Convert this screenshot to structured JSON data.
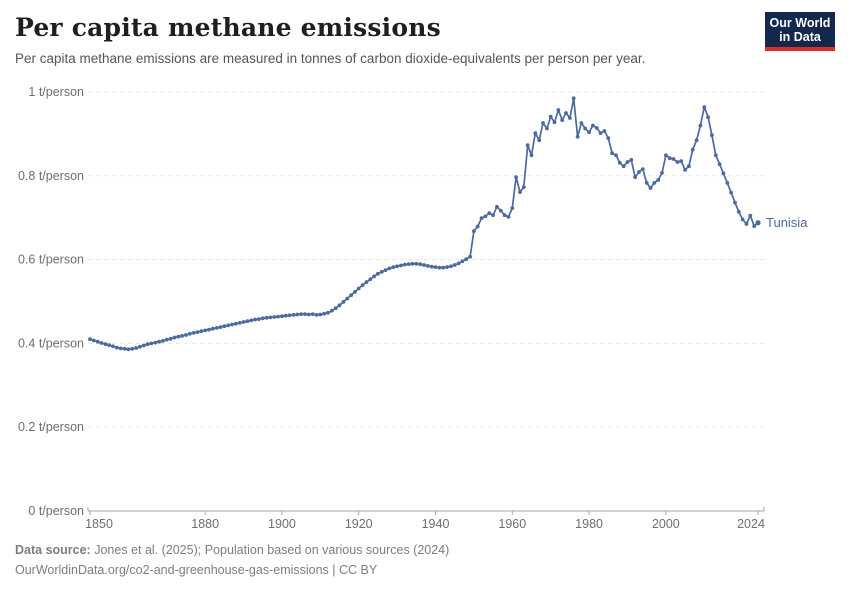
{
  "header": {
    "title": "Per capita methane emissions",
    "subtitle": "Per capita methane emissions are measured in tonnes of carbon dioxide-equivalents per person per year.",
    "logo_line1": "Our World",
    "logo_line2": "in Data"
  },
  "footer": {
    "source_label": "Data source:",
    "source_text": "Jones et al. (2025); Population based on various sources (2024)",
    "note": "OurWorldinData.org/co2-and-greenhouse-gas-emissions | CC BY"
  },
  "colors": {
    "line": "#4C6A9C",
    "entity_label": "#4C6A9C",
    "grid": "#e5e5e5",
    "axis": "#a6a6a6",
    "tick_text": "#6e6e6e",
    "logo_bg": "#12294d",
    "logo_red": "#dc3024"
  },
  "chart_data": {
    "type": "line",
    "title": "Per capita methane emissions",
    "ylabel": "",
    "xlabel": "",
    "unit": "t/person",
    "grid": "dashed-horizontal",
    "legend_position": "line-end-label",
    "xlim": [
      1850,
      2024
    ],
    "ylim": [
      0,
      1
    ],
    "xticks": [
      1850,
      1880,
      1900,
      1920,
      1940,
      1960,
      1980,
      2000,
      2024
    ],
    "yticks": [
      0,
      0.2,
      0.4,
      0.6,
      0.8,
      1
    ],
    "ytick_labels": [
      "0 t/person",
      "0.2 t/person",
      "0.4 t/person",
      "0.6 t/person",
      "0.8 t/person",
      "1 t/person"
    ],
    "series": [
      {
        "name": "Tunisia",
        "x_start": 1850,
        "x_step": 1,
        "values": [
          0.41,
          0.407,
          0.404,
          0.401,
          0.398,
          0.396,
          0.393,
          0.39,
          0.388,
          0.387,
          0.386,
          0.387,
          0.389,
          0.392,
          0.395,
          0.398,
          0.4,
          0.402,
          0.404,
          0.406,
          0.409,
          0.411,
          0.414,
          0.416,
          0.418,
          0.42,
          0.423,
          0.425,
          0.427,
          0.429,
          0.431,
          0.433,
          0.435,
          0.437,
          0.439,
          0.441,
          0.443,
          0.445,
          0.447,
          0.449,
          0.451,
          0.453,
          0.455,
          0.457,
          0.458,
          0.46,
          0.461,
          0.462,
          0.463,
          0.464,
          0.465,
          0.466,
          0.467,
          0.468,
          0.469,
          0.47,
          0.47,
          0.469,
          0.47,
          0.468,
          0.469,
          0.471,
          0.473,
          0.478,
          0.484,
          0.491,
          0.499,
          0.507,
          0.515,
          0.523,
          0.531,
          0.539,
          0.546,
          0.553,
          0.56,
          0.566,
          0.571,
          0.575,
          0.579,
          0.582,
          0.584,
          0.586,
          0.588,
          0.589,
          0.59,
          0.59,
          0.589,
          0.587,
          0.585,
          0.583,
          0.582,
          0.581,
          0.581,
          0.582,
          0.584,
          0.587,
          0.591,
          0.596,
          0.601,
          0.607,
          0.668,
          0.679,
          0.699,
          0.703,
          0.711,
          0.706,
          0.726,
          0.717,
          0.706,
          0.702,
          0.723,
          0.797,
          0.761,
          0.773,
          0.873,
          0.849,
          0.902,
          0.885,
          0.926,
          0.913,
          0.941,
          0.928,
          0.957,
          0.933,
          0.95,
          0.938,
          0.985,
          0.893,
          0.926,
          0.913,
          0.904,
          0.92,
          0.914,
          0.902,
          0.907,
          0.89,
          0.854,
          0.849,
          0.831,
          0.823,
          0.833,
          0.838,
          0.797,
          0.809,
          0.816,
          0.783,
          0.771,
          0.783,
          0.79,
          0.807,
          0.849,
          0.842,
          0.84,
          0.833,
          0.835,
          0.814,
          0.823,
          0.862,
          0.885,
          0.92,
          0.964,
          0.94,
          0.897,
          0.849,
          0.828,
          0.806,
          0.783,
          0.76,
          0.736,
          0.714,
          0.696,
          0.685,
          0.705,
          0.68,
          0.688
        ]
      }
    ]
  }
}
